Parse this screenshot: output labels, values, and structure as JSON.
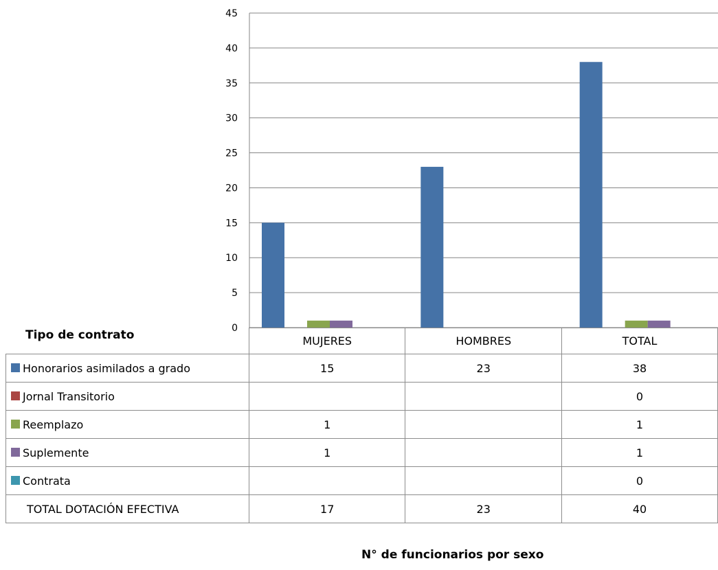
{
  "chart_data": {
    "type": "bar",
    "title": "",
    "xlabel": "N° de funcionarios por sexo",
    "ylabel": "",
    "row_header": "Tipo de contrato",
    "ylim": [
      0,
      45
    ],
    "yticks": [
      0,
      5,
      10,
      15,
      20,
      25,
      30,
      35,
      40,
      45
    ],
    "grid": true,
    "legend": "left-table",
    "categories": [
      "MUJERES",
      "HOMBRES",
      "TOTAL"
    ],
    "series": [
      {
        "name": "Honorarios asimilados a grado",
        "color": "#4572a7",
        "values": [
          15,
          23,
          38
        ],
        "labels": [
          "15",
          "23",
          "38"
        ]
      },
      {
        "name": "Jornal Transitorio",
        "color": "#aa4643",
        "values": [
          null,
          null,
          0
        ],
        "labels": [
          "",
          "",
          "0"
        ]
      },
      {
        "name": "Reemplazo",
        "color": "#89a54e",
        "values": [
          1,
          null,
          1
        ],
        "labels": [
          "1",
          "",
          "1"
        ]
      },
      {
        "name": "Suplemente",
        "color": "#80699b",
        "values": [
          1,
          null,
          1
        ],
        "labels": [
          "1",
          "",
          "1"
        ]
      },
      {
        "name": "Contrata",
        "color": "#3d96ae",
        "values": [
          null,
          null,
          0
        ],
        "labels": [
          "",
          "",
          "0"
        ]
      }
    ],
    "total_row": {
      "name": "TOTAL DOTACIÓN EFECTIVA",
      "values": [
        "17",
        "23",
        "40"
      ]
    }
  }
}
